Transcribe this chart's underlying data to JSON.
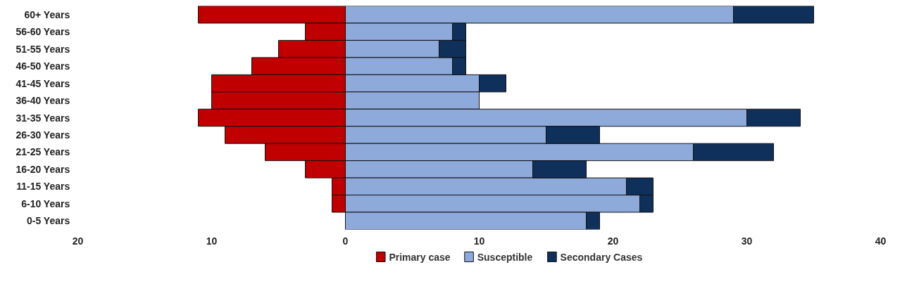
{
  "chart_data": {
    "type": "bar",
    "orientation": "horizontal",
    "stacked": true,
    "categories": [
      "60+ Years",
      "56-60 Years",
      "51-55 Years",
      "46-50 Years",
      "41-45 Years",
      "36-40 Years",
      "31-35 Years",
      "26-30 Years",
      "21-25 Years",
      "16-20 Years",
      "11-15 Years",
      "6-10 Years",
      "0-5 Years"
    ],
    "series": [
      {
        "name": "Primary case",
        "color": "#c00000",
        "values": [
          -11,
          -3,
          -5,
          -7,
          -10,
          -10,
          -11,
          -9,
          -6,
          -3,
          -1,
          -1,
          0
        ]
      },
      {
        "name": "Susceptible",
        "color": "#8eaadb",
        "values": [
          29,
          8,
          7,
          8,
          10,
          10,
          30,
          15,
          26,
          14,
          21,
          22,
          18
        ]
      },
      {
        "name": "Secondary Cases",
        "color": "#10305c",
        "values": [
          6,
          1,
          2,
          1,
          2,
          0,
          4,
          4,
          6,
          4,
          2,
          1,
          1
        ]
      }
    ],
    "xlim": [
      -20,
      40
    ],
    "xticks": [
      {
        "value": -20,
        "label": "20"
      },
      {
        "value": -10,
        "label": "10"
      },
      0,
      10,
      20,
      30,
      40
    ],
    "grid": false,
    "legend": "bottom"
  }
}
